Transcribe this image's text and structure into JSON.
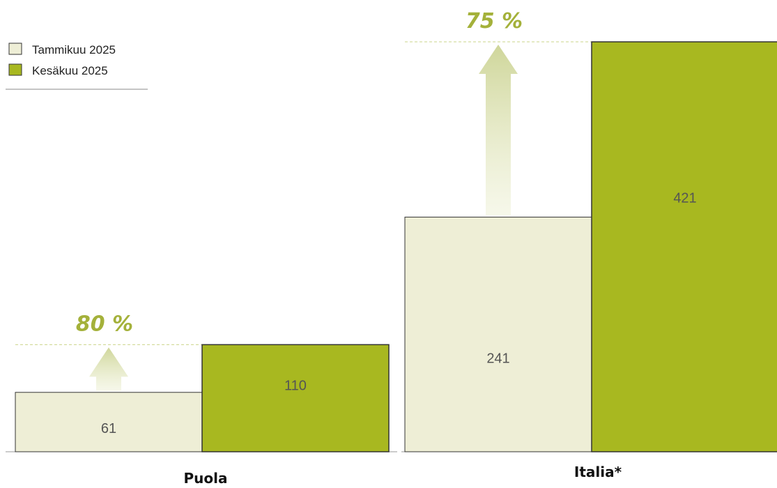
{
  "chart_data": {
    "type": "bar",
    "categories": [
      "Puola",
      "Italia*"
    ],
    "series": [
      {
        "name": "Tammikuu 2025",
        "values": [
          61,
          241
        ],
        "color": "#eeeed6"
      },
      {
        "name": "Kesäkuu 2025",
        "values": [
          110,
          421
        ],
        "color": "#a8b820"
      }
    ],
    "change_labels": [
      "80 %",
      "75 %"
    ],
    "legend_position": "top-left",
    "grid": false,
    "ylim": [
      0,
      421
    ]
  },
  "colors": {
    "light": "#eeeed6",
    "dark": "#a8b820",
    "accent_text": "#a4b13a",
    "arrow": "#dde2b4",
    "border": "#333333",
    "guide": "#cbd489"
  }
}
